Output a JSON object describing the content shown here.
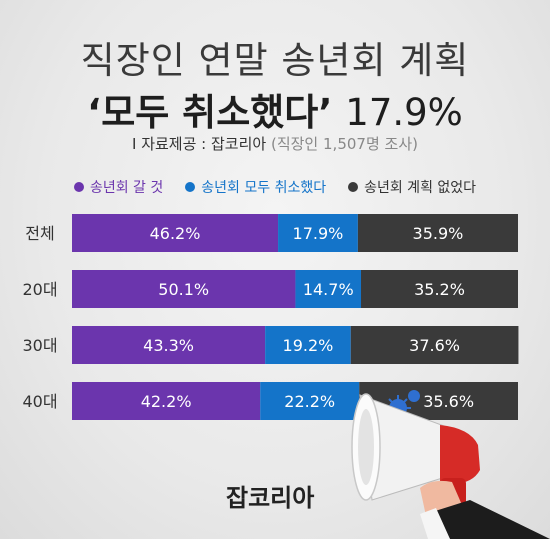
{
  "title_line1": "직장인 연말 송년회 계획",
  "title_line2_main": "‘모두 취소했다’",
  "title_line2_value": "17.9%",
  "source_label": "I 자료제공 : 잡코리아",
  "source_note": "(직장인 1,507명 조사)",
  "brand": "잡코리아",
  "colors": {
    "will_attend": "#6b35ad",
    "all_canceled": "#1474c9",
    "no_plan": "#3a3a3a"
  },
  "chart_data": {
    "type": "bar",
    "orientation": "horizontal-stacked-100",
    "categories": [
      "전체",
      "20대",
      "30대",
      "40대"
    ],
    "series": [
      {
        "name": "송년회 갈 것",
        "values": [
          46.2,
          50.1,
          43.3,
          42.2
        ],
        "labels": [
          "46.2%",
          "50.1%",
          "43.3%",
          "42.2%"
        ]
      },
      {
        "name": "송년회 모두 취소했다",
        "values": [
          17.9,
          14.7,
          19.2,
          22.2
        ],
        "labels": [
          "17.9%",
          "14.7%",
          "19.2%",
          "22.2%"
        ]
      },
      {
        "name": "송년회 계획 없었다",
        "values": [
          35.9,
          35.2,
          37.6,
          35.6
        ],
        "labels": [
          "35.9%",
          "35.2%",
          "37.6%",
          "35.6%"
        ]
      }
    ],
    "xlim": [
      0,
      100
    ],
    "legend": "top",
    "grid": false
  }
}
